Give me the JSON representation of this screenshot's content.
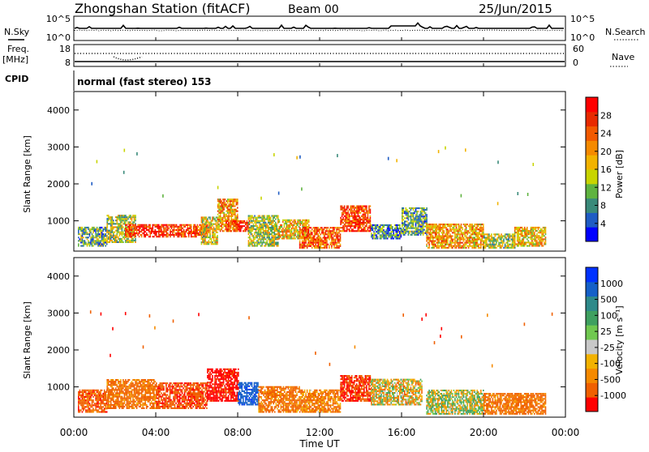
{
  "header": {
    "station": "Zhongshan Station (fitACF)",
    "beam": "Beam 00",
    "date": "25/Jun/2015"
  },
  "left_labels": {
    "nsky": "N.Sky",
    "freq1": "Freq.",
    "freq2": "[MHz]",
    "cpid": "CPID"
  },
  "right_labels": {
    "nsearch": "N.Search",
    "nave": "Nave"
  },
  "panel1": {
    "left_ticks": [
      "10^5",
      "10^0"
    ],
    "right_ticks": [
      "10^5",
      "10^0"
    ]
  },
  "panel2": {
    "left_ticks": [
      "18",
      "8"
    ],
    "right_ticks": [
      "60",
      "0"
    ]
  },
  "cpid_text": "normal (fast stereo) 153",
  "power_colorbar": {
    "label": "Power [dB]",
    "ticks": [
      "28",
      "24",
      "20",
      "16",
      "12",
      "8",
      "4"
    ],
    "colors": [
      "#0000ff",
      "#1f5cc4",
      "#3a8a7a",
      "#5fb340",
      "#c8d400",
      "#f2b300",
      "#f58a00",
      "#f25a00",
      "#e82a00",
      "#ff0000"
    ]
  },
  "velocity_colorbar": {
    "label": "Velocity [m s⁻¹]",
    "ticks": [
      "1000",
      "500",
      "100",
      "25",
      "-25",
      "-100",
      "-500",
      "-1000"
    ],
    "colors": [
      "#0032ff",
      "#1560c8",
      "#2e8a8a",
      "#3fa060",
      "#70c850",
      "#c8c8c8",
      "#f2b200",
      "#f58a00",
      "#f06000",
      "#ff0000"
    ]
  },
  "chart_data": [
    {
      "type": "heatmap",
      "title": "Power",
      "ylabel": "Slant Range [km]",
      "xlabel": "Time UT",
      "ylim": [
        180,
        4500
      ],
      "yticks": [
        "1000",
        "2000",
        "3000",
        "4000"
      ],
      "xticks": [
        "00:00",
        "04:00",
        "08:00",
        "12:00",
        "16:00",
        "20:00",
        "00:00"
      ],
      "cbar_range": [
        0,
        32
      ],
      "clusters": [
        {
          "t0": 0.2,
          "t1": 1.6,
          "r0": 300,
          "r1": 820,
          "v": 10
        },
        {
          "t0": 1.6,
          "t1": 3.0,
          "r0": 400,
          "r1": 1150,
          "v": 14
        },
        {
          "t0": 2.5,
          "t1": 4.5,
          "r0": 550,
          "r1": 900,
          "v": 28
        },
        {
          "t0": 4.5,
          "t1": 6.5,
          "r0": 550,
          "r1": 900,
          "v": 26
        },
        {
          "t0": 6.2,
          "t1": 7.0,
          "r0": 350,
          "r1": 1100,
          "v": 16
        },
        {
          "t0": 7.0,
          "t1": 8.0,
          "r0": 700,
          "r1": 1600,
          "v": 20
        },
        {
          "t0": 7.4,
          "t1": 8.6,
          "r0": 700,
          "r1": 1000,
          "v": 28
        },
        {
          "t0": 8.5,
          "t1": 10.0,
          "r0": 300,
          "r1": 1150,
          "v": 14
        },
        {
          "t0": 10.0,
          "t1": 11.5,
          "r0": 500,
          "r1": 1000,
          "v": 18
        },
        {
          "t0": 11.0,
          "t1": 13.0,
          "r0": 250,
          "r1": 800,
          "v": 24
        },
        {
          "t0": 13.0,
          "t1": 14.5,
          "r0": 700,
          "r1": 1400,
          "v": 26
        },
        {
          "t0": 14.5,
          "t1": 16.0,
          "r0": 500,
          "r1": 900,
          "v": 8
        },
        {
          "t0": 16.0,
          "t1": 17.2,
          "r0": 600,
          "r1": 1350,
          "v": 10
        },
        {
          "t0": 17.2,
          "t1": 20.0,
          "r0": 250,
          "r1": 900,
          "v": 20
        },
        {
          "t0": 20.0,
          "t1": 21.5,
          "r0": 250,
          "r1": 650,
          "v": 14
        },
        {
          "t0": 21.5,
          "t1": 23.0,
          "r0": 300,
          "r1": 800,
          "v": 18
        }
      ]
    },
    {
      "type": "heatmap",
      "title": "Velocity",
      "ylabel": "Slant Range [km]",
      "xlabel": "Time UT",
      "ylim": [
        180,
        4500
      ],
      "yticks": [
        "1000",
        "2000",
        "3000",
        "4000"
      ],
      "xticks": [
        "00:00",
        "04:00",
        "08:00",
        "12:00",
        "16:00",
        "20:00",
        "00:00"
      ],
      "clusters": [
        {
          "t0": 0.2,
          "t1": 1.6,
          "r0": 300,
          "r1": 900,
          "v": -200
        },
        {
          "t0": 1.6,
          "t1": 4.0,
          "r0": 400,
          "r1": 1200,
          "v": -150
        },
        {
          "t0": 4.0,
          "t1": 6.5,
          "r0": 400,
          "r1": 1100,
          "v": -250
        },
        {
          "t0": 6.5,
          "t1": 8.0,
          "r0": 600,
          "r1": 1500,
          "v": -400
        },
        {
          "t0": 8.0,
          "t1": 9.0,
          "r0": 500,
          "r1": 1100,
          "v": 900
        },
        {
          "t0": 9.0,
          "t1": 11.0,
          "r0": 300,
          "r1": 1000,
          "v": -150
        },
        {
          "t0": 11.0,
          "t1": 13.0,
          "r0": 300,
          "r1": 900,
          "v": -120
        },
        {
          "t0": 13.0,
          "t1": 14.5,
          "r0": 600,
          "r1": 1300,
          "v": -300
        },
        {
          "t0": 14.5,
          "t1": 17.0,
          "r0": 500,
          "r1": 1200,
          "v": 0
        },
        {
          "t0": 17.2,
          "t1": 20.0,
          "r0": 250,
          "r1": 900,
          "v": 60
        },
        {
          "t0": 20.0,
          "t1": 23.0,
          "r0": 250,
          "r1": 800,
          "v": -150
        }
      ]
    }
  ]
}
